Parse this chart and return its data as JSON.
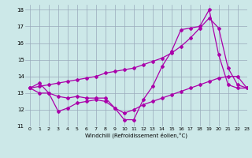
{
  "x": [
    0,
    1,
    2,
    3,
    4,
    5,
    6,
    7,
    8,
    9,
    10,
    11,
    12,
    13,
    14,
    15,
    16,
    17,
    18,
    19,
    20,
    21,
    22,
    23
  ],
  "line1": [
    13.3,
    13.6,
    13.0,
    12.8,
    12.7,
    12.8,
    12.7,
    12.7,
    12.7,
    12.1,
    11.4,
    11.4,
    12.6,
    13.4,
    14.6,
    15.5,
    16.8,
    16.9,
    17.0,
    18.0,
    15.3,
    13.5,
    13.3,
    13.3
  ],
  "line2": [
    13.3,
    13.4,
    13.5,
    13.6,
    13.7,
    13.8,
    13.9,
    14.0,
    14.2,
    14.3,
    14.4,
    14.5,
    14.7,
    14.9,
    15.1,
    15.4,
    15.8,
    16.3,
    16.9,
    17.5,
    16.9,
    14.5,
    13.5,
    13.3
  ],
  "line3": [
    13.3,
    13.0,
    13.0,
    11.9,
    12.1,
    12.4,
    12.5,
    12.6,
    12.5,
    12.1,
    11.8,
    12.0,
    12.3,
    12.5,
    12.7,
    12.9,
    13.1,
    13.3,
    13.5,
    13.7,
    13.9,
    14.0,
    14.0,
    13.3
  ],
  "line_color": "#aa00aa",
  "bg_color": "#cce8e8",
  "grid_color": "#99aabb",
  "xlabel": "Windchill (Refroidissement éolien,°C)",
  "xlim": [
    -0.5,
    23
  ],
  "ylim": [
    11,
    18.3
  ],
  "yticks": [
    11,
    12,
    13,
    14,
    15,
    16,
    17,
    18
  ],
  "xticks": [
    0,
    1,
    2,
    3,
    4,
    5,
    6,
    7,
    8,
    9,
    10,
    11,
    12,
    13,
    14,
    15,
    16,
    17,
    18,
    19,
    20,
    21,
    22,
    23
  ],
  "tick_fontsize": 4.5,
  "xlabel_fontsize": 5.0
}
